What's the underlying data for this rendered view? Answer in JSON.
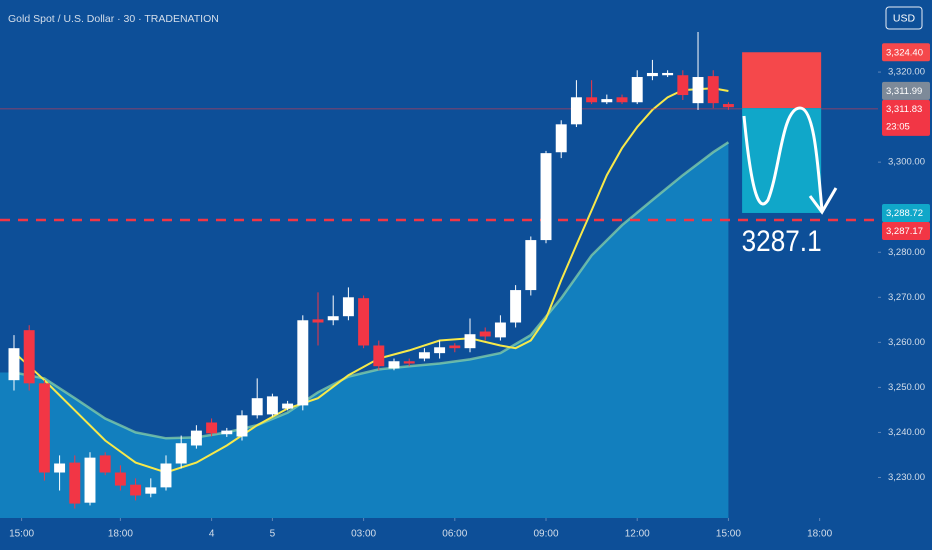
{
  "chart_data": {
    "type": "candlestick",
    "title": "Gold Spot / U.S. Dollar · 30 · TRADENATION",
    "currency": "USD",
    "xlim": [
      -0.92,
      56.84
    ],
    "ylim": [
      3221,
      3336
    ],
    "up_color": "#ffffff",
    "down_color": "#f23645",
    "xticks": [
      {
        "value": 0.5,
        "label": "15:00"
      },
      {
        "value": 7,
        "label": "18:00"
      },
      {
        "value": 13,
        "label": "4"
      },
      {
        "value": 17,
        "label": "5"
      },
      {
        "value": 23,
        "label": "03:00"
      },
      {
        "value": 29,
        "label": "06:00"
      },
      {
        "value": 35,
        "label": "09:00"
      },
      {
        "value": 41,
        "label": "12:00"
      },
      {
        "value": 47,
        "label": "15:00"
      },
      {
        "value": 53,
        "label": "18:00"
      }
    ],
    "yticks": [
      {
        "value": 3320,
        "label": "3,320.00"
      },
      {
        "value": 3300,
        "label": "3,300.00"
      },
      {
        "value": 3280,
        "label": "3,280.00"
      },
      {
        "value": 3270,
        "label": "3,270.00"
      },
      {
        "value": 3260,
        "label": "3,260.00"
      },
      {
        "value": 3250,
        "label": "3,250.00"
      },
      {
        "value": 3240,
        "label": "3,240.00"
      },
      {
        "value": 3230,
        "label": "3,230.00"
      }
    ],
    "open": [
      3251.6,
      3262.7,
      3250.9,
      3231.1,
      3233.3,
      3224.4,
      3234.9,
      3231.1,
      3228.4,
      3226.4,
      3227.8,
      3233.1,
      3237.1,
      3242.2,
      3239.6,
      3239.1,
      3243.8,
      3244.0,
      3245.3,
      3246.0,
      3265.1,
      3264.9,
      3265.8,
      3269.8,
      3259.3,
      3254.2,
      3255.8,
      3256.4,
      3257.6,
      3259.3,
      3258.7,
      3262.4,
      3261.1,
      3264.4,
      3271.6,
      3282.7,
      3302.2,
      3308.4,
      3314.4,
      3313.3,
      3314.4,
      3313.3,
      3319.1,
      3319.3,
      3319.3,
      3313.1,
      3319.1,
      3312.9
    ],
    "high": [
      3261.6,
      3263.8,
      3251.6,
      3234.9,
      3234.9,
      3235.6,
      3235.6,
      3232.7,
      3229.8,
      3229.8,
      3234.9,
      3239.3,
      3241.6,
      3243.1,
      3241.0,
      3244.9,
      3252.0,
      3248.6,
      3247.0,
      3266.0,
      3271.1,
      3270.4,
      3272.2,
      3270.4,
      3260.4,
      3256.4,
      3256.4,
      3258.7,
      3260.4,
      3259.8,
      3265.3,
      3263.3,
      3266.0,
      3272.7,
      3283.5,
      3302.5,
      3309.3,
      3318.2,
      3318.2,
      3315.0,
      3315.0,
      3320.4,
      3322.7,
      3320.4,
      3320.4,
      3328.9,
      3320.4,
      3313.3
    ],
    "low": [
      3249.3,
      3249.3,
      3229.3,
      3227.1,
      3223.1,
      3223.8,
      3230.5,
      3227.1,
      3224.9,
      3225.6,
      3227.1,
      3232.0,
      3236.4,
      3239.1,
      3239.0,
      3238.2,
      3243.1,
      3243.5,
      3244.9,
      3244.9,
      3259.3,
      3263.8,
      3264.9,
      3258.7,
      3253.8,
      3253.8,
      3254.7,
      3255.8,
      3256.4,
      3257.8,
      3257.8,
      3260.4,
      3260.4,
      3263.3,
      3270.4,
      3282.0,
      3300.9,
      3307.8,
      3312.9,
      3312.9,
      3312.9,
      3312.9,
      3318.2,
      3318.9,
      3313.8,
      3311.6,
      3312.0,
      3311.6
    ],
    "close": [
      3258.7,
      3250.9,
      3231.1,
      3233.1,
      3224.2,
      3234.4,
      3231.1,
      3228.2,
      3226.0,
      3227.8,
      3233.1,
      3237.6,
      3240.4,
      3239.8,
      3240.4,
      3243.8,
      3247.6,
      3248.0,
      3246.4,
      3264.9,
      3264.4,
      3265.8,
      3270.0,
      3259.3,
      3254.7,
      3255.8,
      3255.3,
      3257.8,
      3258.9,
      3258.7,
      3261.8,
      3261.3,
      3264.4,
      3271.6,
      3282.7,
      3302.0,
      3308.4,
      3314.4,
      3313.3,
      3314.0,
      3313.3,
      3318.9,
      3319.8,
      3319.8,
      3314.9,
      3318.9,
      3313.1,
      3312.2
    ],
    "lines": [
      {
        "color": "#8fd9a8",
        "fill": "#1487c4",
        "x": [
          0,
          2,
          4,
          6,
          8,
          10,
          12,
          14,
          16,
          18,
          20,
          22,
          24,
          26,
          28,
          30,
          32,
          34,
          36,
          38,
          40,
          42,
          44,
          46,
          47
        ],
        "values": [
          3253.3,
          3252.0,
          3247.6,
          3243.1,
          3240.0,
          3238.7,
          3238.9,
          3240.0,
          3241.6,
          3244.4,
          3248.9,
          3252.4,
          3254.0,
          3254.7,
          3255.3,
          3256.2,
          3257.6,
          3261.6,
          3269.8,
          3279.3,
          3286.0,
          3291.6,
          3297.1,
          3302.2,
          3304.4
        ]
      },
      {
        "color": "#f7e94a",
        "x": [
          0,
          2,
          4,
          6,
          8,
          10,
          12,
          14,
          16,
          18,
          20,
          22,
          24,
          26,
          28,
          30,
          32,
          33,
          34,
          35,
          36,
          37,
          38,
          39,
          40,
          41,
          42,
          43,
          44,
          46,
          47
        ],
        "values": [
          3257.8,
          3251.6,
          3244.9,
          3238.2,
          3233.3,
          3231.1,
          3233.3,
          3237.1,
          3241.6,
          3245.3,
          3247.6,
          3252.7,
          3256.4,
          3258.2,
          3260.4,
          3260.9,
          3259.3,
          3258.7,
          3260.4,
          3265.3,
          3273.8,
          3281.6,
          3289.3,
          3297.1,
          3303.1,
          3307.8,
          3311.6,
          3314.4,
          3316.0,
          3316.4,
          3315.8
        ]
      }
    ],
    "hline": {
      "value": 3287.17,
      "label": "3,287.17",
      "color": "#f23645"
    },
    "last_price": {
      "value": 3311.83,
      "label": "3,311.83",
      "countdown": "23:05",
      "color": "#f23645"
    },
    "position": {
      "x": [
        47.9,
        53.1
      ],
      "stop": {
        "value": 3324.4,
        "label": "3,324.40",
        "color": "#f5484b"
      },
      "entry": {
        "value": 3311.99,
        "label": "3,311.99",
        "color": "#7d8a99"
      },
      "target": {
        "value": 3288.72,
        "label": "3,288.72",
        "color": "#10a7c9"
      },
      "target_text": "3287.1"
    }
  }
}
